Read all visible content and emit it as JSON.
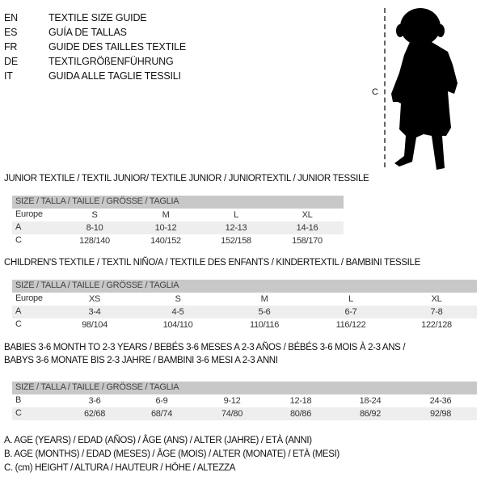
{
  "header": {
    "languages": [
      {
        "code": "EN",
        "title": "TEXTILE SIZE GUIDE"
      },
      {
        "code": "ES",
        "title": "GUÍA DE TALLAS"
      },
      {
        "code": "FR",
        "title": "GUIDE DES TAILLES TEXTILE"
      },
      {
        "code": "DE",
        "title": "TEXTILGRÖßENFÜHRUNG"
      },
      {
        "code": "IT",
        "title": "GUIDA ALLE TAGLIE TESSILI"
      }
    ]
  },
  "figure": {
    "measure_label": "C",
    "icon": "baby-silhouette-icon"
  },
  "colors": {
    "header_row": "#c8c8c8",
    "shaded_row": "#eeeeee"
  },
  "tables": [
    {
      "title": "JUNIOR TEXTILE / TEXTIL JUNIOR/ TEXTILE JUNIOR / JUNIORTEXTIL / JUNIOR TESSILE",
      "header": "SIZE / TALLA / TAILLE / GRÖSSE / TAGLIA",
      "rows": [
        {
          "label": "Europe",
          "values": [
            "S",
            "M",
            "L",
            "XL"
          ]
        },
        {
          "label": "A",
          "values": [
            "8-10",
            "10-12",
            "12-13",
            "14-16"
          ]
        },
        {
          "label": "C",
          "values": [
            "128/140",
            "140/152",
            "152/158",
            "158/170"
          ]
        }
      ]
    },
    {
      "title": "CHILDREN'S TEXTILE / TEXTIL NIÑO/A / TEXTILE DES ENFANTS / KINDERTEXTIL / BAMBINI TESSILE",
      "header": "SIZE / TALLA / TAILLE / GRÖSSE / TAGLIA",
      "rows": [
        {
          "label": "Europe",
          "values": [
            "XS",
            "S",
            "M",
            "L",
            "XL"
          ]
        },
        {
          "label": "A",
          "values": [
            "3-4",
            "4-5",
            "5-6",
            "6-7",
            "7-8"
          ]
        },
        {
          "label": "C",
          "values": [
            "98/104",
            "104/110",
            "110/116",
            "116/122",
            "122/128"
          ]
        }
      ]
    },
    {
      "title": "BABIES 3-6 MONTH TO 2-3 YEARS / BEBÉS 3-6 MESES A 2-3 AÑOS / BÉBÉS 3-6 MOIS À 2-3 ANS /",
      "title2": "BABYS 3-6 MONATE BIS 2-3 JAHRE / BAMBINI 3-6 MESI A 2-3 ANNI",
      "header": "SIZE / TALLA / TAILLE / GRÖSSE / TAGLIA",
      "rows": [
        {
          "label": "B",
          "values": [
            "3-6",
            "6-9",
            "9-12",
            "12-18",
            "18-24",
            "24-36"
          ]
        },
        {
          "label": "C",
          "values": [
            "62/68",
            "68/74",
            "74/80",
            "80/86",
            "86/92",
            "92/98"
          ]
        }
      ]
    }
  ],
  "legend": [
    "A. AGE (YEARS) / EDAD (AÑOS) / ÂGE (ANS) / ALTER (JAHRE) / ETÀ (ANNI)",
    "B. AGE (MONTHS) / EDAD (MESES) / ÂGE (MOIS) / ALTER (MONATE) / ETÀ (MESI)",
    "C. (cm) HEIGHT / ALTURA / HAUTEUR / HÖHE / ALTEZZA"
  ]
}
